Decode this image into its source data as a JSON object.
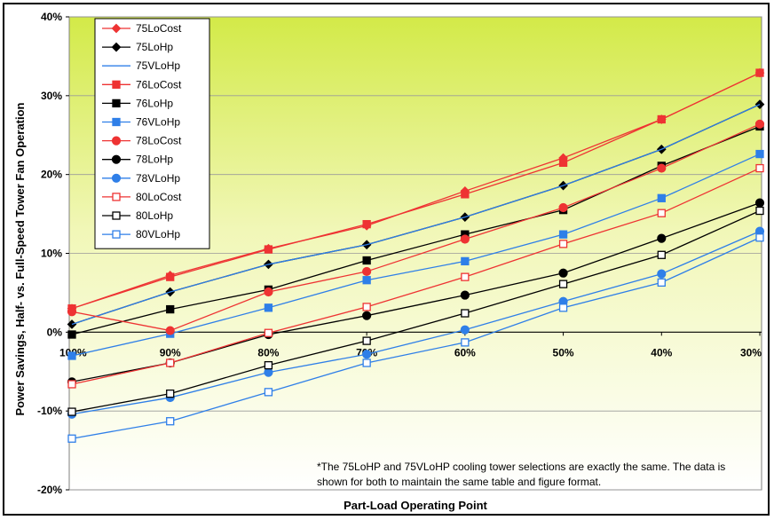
{
  "chart_data": {
    "type": "line",
    "title": "",
    "xlabel": "Part-Load Operating Point",
    "ylabel": "Power Savings, Half- vs. Full-Speed Tower Fan Operation",
    "categories": [
      "100%",
      "90%",
      "80%",
      "70%",
      "60%",
      "50%",
      "40%",
      "30%"
    ],
    "yticks": [
      "-20%",
      "-10%",
      "0%",
      "10%",
      "20%",
      "30%",
      "40%"
    ],
    "ylim": [
      -20,
      40
    ],
    "grid": "horizontal",
    "legend_position": "top-left",
    "background": "gradient yellow-green top to white bottom",
    "note_lines": [
      "*The 75LoHP and 75VLoHP cooling tower selections are exactly the same. The data is",
      "shown for both to maintain the same table and figure format."
    ],
    "series": [
      {
        "name": "75LoCost",
        "color": "#ee3333",
        "marker": "diamond",
        "filled": true,
        "values": [
          3.0,
          7.2,
          10.6,
          13.5,
          17.9,
          22.1,
          27.0,
          32.9
        ]
      },
      {
        "name": "75LoHp",
        "color": "#000000",
        "marker": "diamond",
        "filled": true,
        "values": [
          1.0,
          5.1,
          8.6,
          11.1,
          14.6,
          18.6,
          23.2,
          28.9
        ]
      },
      {
        "name": "75VLoHp",
        "color": "#2f7fe8",
        "marker": "none",
        "filled": false,
        "values": [
          1.0,
          5.1,
          8.6,
          11.1,
          14.6,
          18.6,
          23.2,
          28.9
        ]
      },
      {
        "name": "76LoCost",
        "color": "#ee3333",
        "marker": "square",
        "filled": true,
        "values": [
          3.0,
          7.0,
          10.5,
          13.7,
          17.5,
          21.5,
          27.0,
          32.9
        ]
      },
      {
        "name": "76LoHp",
        "color": "#000000",
        "marker": "square",
        "filled": true,
        "values": [
          -0.3,
          2.9,
          5.4,
          9.1,
          12.4,
          15.5,
          21.1,
          26.1
        ]
      },
      {
        "name": "76VLoHp",
        "color": "#2f7fe8",
        "marker": "square",
        "filled": true,
        "values": [
          -3.0,
          -0.2,
          3.1,
          6.6,
          9.0,
          12.4,
          17.0,
          22.6
        ]
      },
      {
        "name": "78LoCost",
        "color": "#ee3333",
        "marker": "circle",
        "filled": true,
        "values": [
          2.6,
          0.2,
          5.1,
          7.7,
          11.8,
          15.8,
          20.8,
          26.4
        ]
      },
      {
        "name": "78LoHp",
        "color": "#000000",
        "marker": "circle",
        "filled": true,
        "values": [
          -6.3,
          -3.9,
          -0.3,
          2.1,
          4.7,
          7.5,
          11.9,
          16.4
        ]
      },
      {
        "name": "78VLoHp",
        "color": "#2f7fe8",
        "marker": "circle",
        "filled": true,
        "values": [
          -10.4,
          -8.3,
          -5.1,
          -2.8,
          0.3,
          3.9,
          7.4,
          12.8
        ]
      },
      {
        "name": "80LoCost",
        "color": "#ee3333",
        "marker": "square",
        "filled": false,
        "values": [
          -6.6,
          -3.9,
          -0.1,
          3.2,
          7.0,
          11.2,
          15.1,
          20.8
        ]
      },
      {
        "name": "80LoHp",
        "color": "#000000",
        "marker": "square",
        "filled": false,
        "values": [
          -10.1,
          -7.8,
          -4.2,
          -1.1,
          2.4,
          6.1,
          9.8,
          15.4
        ]
      },
      {
        "name": "80VLoHp",
        "color": "#2f7fe8",
        "marker": "square",
        "filled": false,
        "values": [
          -13.5,
          -11.3,
          -7.6,
          -3.9,
          -1.3,
          3.1,
          6.3,
          12.0
        ]
      }
    ]
  }
}
